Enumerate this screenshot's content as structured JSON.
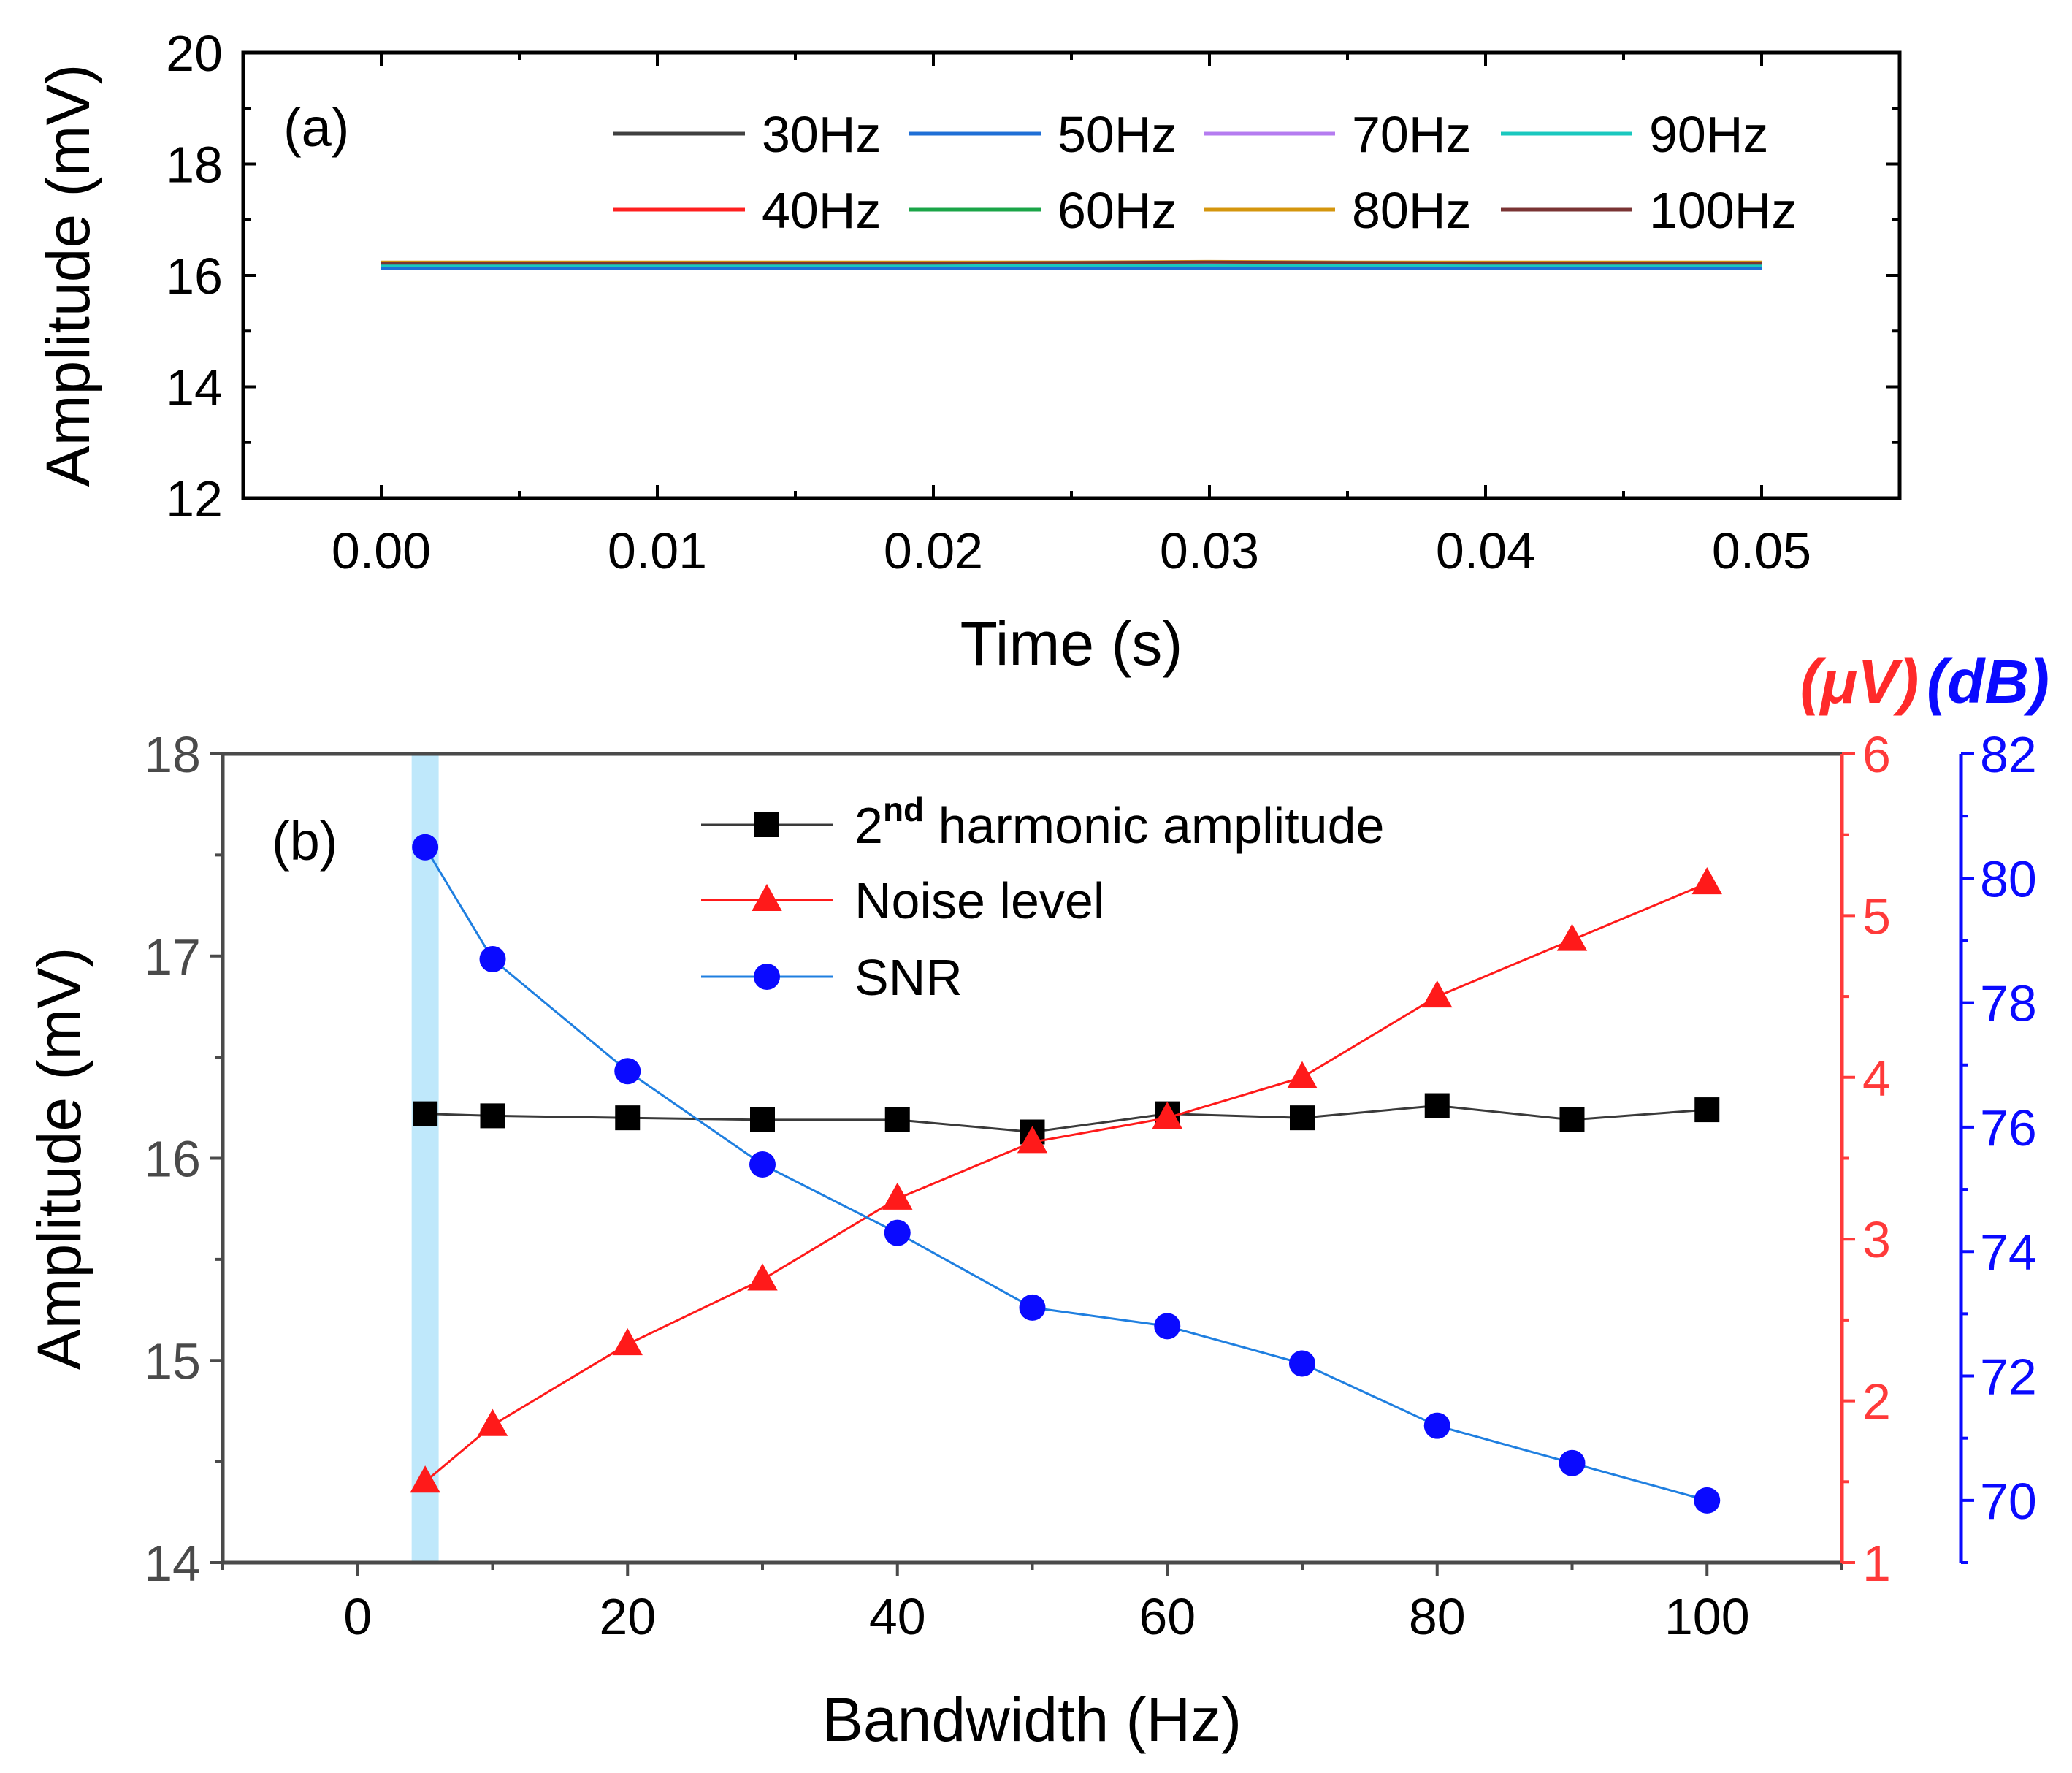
{
  "chart_data": [
    {
      "type": "line",
      "panel_tag": "(a)",
      "xlabel": "Time (s)",
      "ylabel": "Amplitude (mV)",
      "xlim": [
        -0.005,
        0.055
      ],
      "ylim": [
        12,
        20
      ],
      "x_ticks": [
        "0.00",
        "0.01",
        "0.02",
        "0.03",
        "0.04",
        "0.05"
      ],
      "y_ticks": [
        "12",
        "14",
        "16",
        "18",
        "20"
      ],
      "grid": false,
      "legend_position": "top-right",
      "x": [
        0.0,
        0.005,
        0.01,
        0.015,
        0.02,
        0.025,
        0.03,
        0.035,
        0.04,
        0.045,
        0.05
      ],
      "series": [
        {
          "name": "30Hz",
          "color": "#404040",
          "values": [
            16.18,
            16.18,
            16.18,
            16.18,
            16.19,
            16.19,
            16.2,
            16.19,
            16.18,
            16.18,
            16.18
          ]
        },
        {
          "name": "40Hz",
          "color": "#ff2020",
          "values": [
            16.2,
            16.2,
            16.2,
            16.2,
            16.2,
            16.2,
            16.21,
            16.2,
            16.2,
            16.2,
            16.2
          ]
        },
        {
          "name": "50Hz",
          "color": "#1f6fd6",
          "values": [
            16.12,
            16.12,
            16.12,
            16.12,
            16.13,
            16.13,
            16.13,
            16.12,
            16.12,
            16.12,
            16.12
          ]
        },
        {
          "name": "60Hz",
          "color": "#1ba548",
          "values": [
            16.2,
            16.2,
            16.2,
            16.2,
            16.2,
            16.2,
            16.21,
            16.2,
            16.2,
            16.2,
            16.2
          ]
        },
        {
          "name": "70Hz",
          "color": "#b57cf0",
          "values": [
            16.19,
            16.19,
            16.19,
            16.19,
            16.19,
            16.19,
            16.2,
            16.19,
            16.19,
            16.19,
            16.19
          ]
        },
        {
          "name": "80Hz",
          "color": "#d4960e",
          "values": [
            16.24,
            16.24,
            16.24,
            16.24,
            16.24,
            16.24,
            16.25,
            16.24,
            16.24,
            16.24,
            16.24
          ]
        },
        {
          "name": "90Hz",
          "color": "#1ac8bf",
          "values": [
            16.17,
            16.17,
            16.17,
            16.17,
            16.17,
            16.17,
            16.18,
            16.17,
            16.17,
            16.17,
            16.17
          ]
        },
        {
          "name": "100Hz",
          "color": "#7a3434",
          "values": [
            16.22,
            16.22,
            16.22,
            16.22,
            16.22,
            16.23,
            16.24,
            16.23,
            16.22,
            16.22,
            16.22
          ]
        }
      ]
    },
    {
      "type": "line",
      "panel_tag": "(b)",
      "xlabel": "Bandwidth (Hz)",
      "ylabel": "Amplitude (mV)",
      "y2_unit": "(μV)",
      "y3_unit": "(dB)",
      "xlim": [
        -10,
        110
      ],
      "ylim": [
        14,
        18
      ],
      "y2lim": [
        1,
        6
      ],
      "y3lim": [
        69,
        82
      ],
      "x_ticks": [
        "0",
        "20",
        "40",
        "60",
        "80",
        "100"
      ],
      "y_ticks": [
        "14",
        "15",
        "16",
        "17",
        "18"
      ],
      "y2_ticks": [
        "1",
        "2",
        "3",
        "4",
        "5",
        "6"
      ],
      "y3_ticks": [
        "70",
        "72",
        "74",
        "76",
        "78",
        "80",
        "82"
      ],
      "grid": false,
      "legend_position": "top-center",
      "highlight_band": [
        4,
        6
      ],
      "x": [
        5,
        10,
        20,
        30,
        40,
        50,
        60,
        70,
        80,
        90,
        100
      ],
      "series": [
        {
          "legend_main": "2",
          "legend_sup": "nd",
          "legend_rest": " harmonic amplitude",
          "axis": "left",
          "marker": "square",
          "color": "#000000",
          "line_color": "#3a3a3a",
          "values": [
            16.22,
            16.21,
            16.2,
            16.19,
            16.19,
            16.13,
            16.22,
            16.2,
            16.26,
            16.19,
            16.24
          ]
        },
        {
          "name": "Noise level",
          "axis": "right1",
          "marker": "triangle",
          "color": "#ff1a1a",
          "line_color": "#ff1a1a",
          "values": [
            1.5,
            1.85,
            2.35,
            2.75,
            3.25,
            3.6,
            3.75,
            4.0,
            4.5,
            4.85,
            5.2
          ]
        },
        {
          "name": "SNR",
          "axis": "right2",
          "marker": "circle",
          "color": "#0a0aff",
          "line_color": "#1f7fe0",
          "values": [
            80.5,
            78.7,
            76.9,
            75.4,
            74.3,
            73.1,
            72.8,
            72.2,
            71.2,
            70.6,
            70.0
          ]
        }
      ]
    }
  ]
}
